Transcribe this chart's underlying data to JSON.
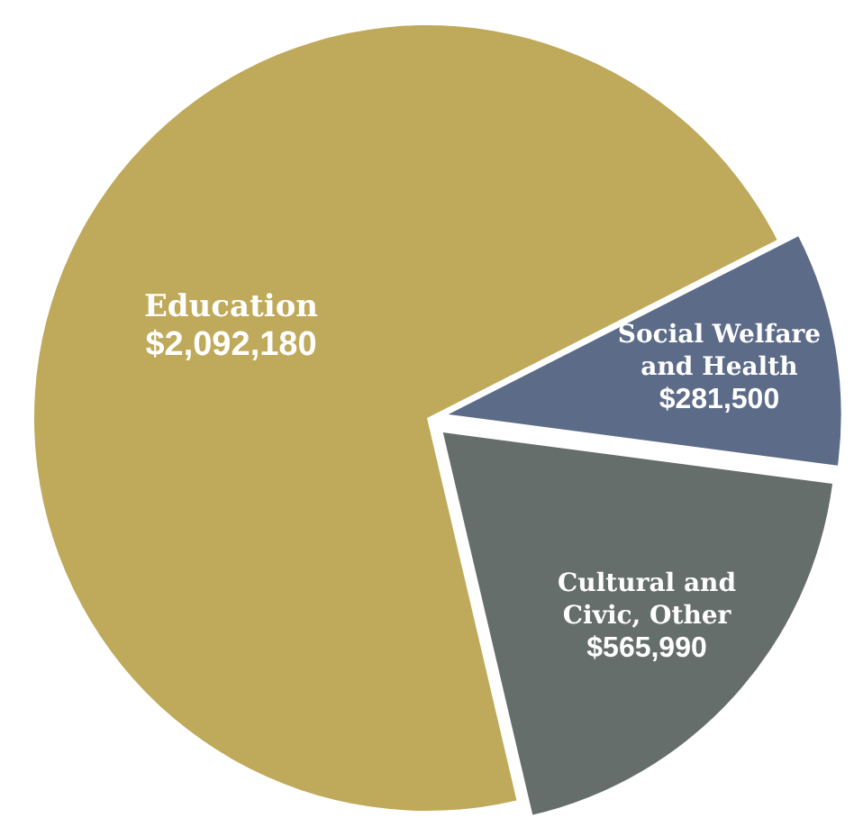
{
  "chart_data": {
    "type": "pie",
    "categories": [
      "Social Welfare and Health",
      "Cultural and Civic, Other",
      "Education"
    ],
    "values": [
      281500,
      565990,
      2092180
    ],
    "value_labels": [
      "$281,500",
      "$565,990",
      "$2,092,180"
    ],
    "colors": [
      "#5c6b87",
      "#666e6c",
      "#bfa95a"
    ]
  }
}
